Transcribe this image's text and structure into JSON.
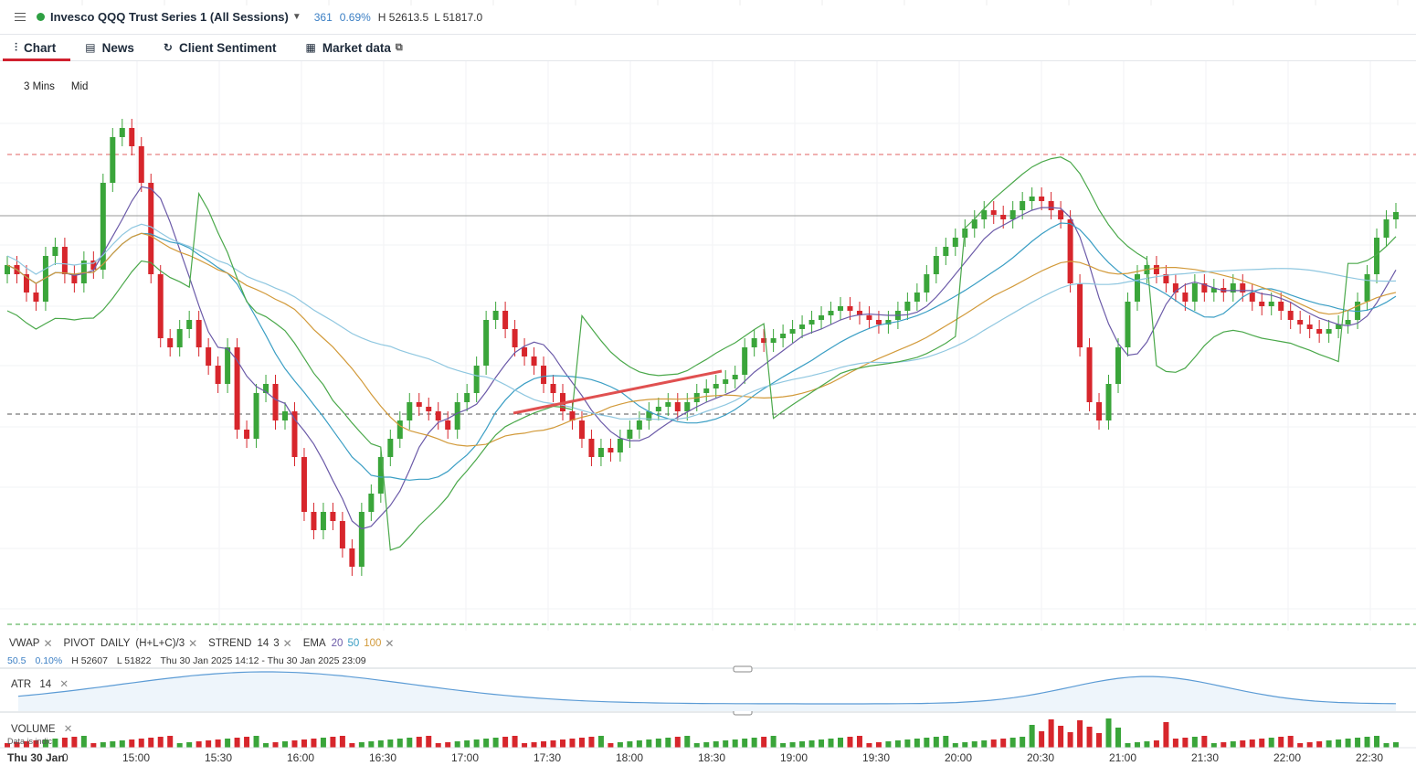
{
  "header": {
    "title": "Invesco QQQ Trust Series 1 (All Sessions)",
    "change": "361",
    "change_pct": "0.69%",
    "high": "H 52613.5",
    "low": "L 51817.0",
    "status_color": "#2ea043"
  },
  "tabs": [
    {
      "label": "Chart",
      "icon": "chart-icon"
    },
    {
      "label": "News",
      "icon": "news-icon"
    },
    {
      "label": "Client Sentiment",
      "icon": "sentiment-icon"
    },
    {
      "label": "Market data",
      "icon": "market-data-icon"
    }
  ],
  "toolbar": {
    "interval": "3 Mins",
    "price_type": "Mid"
  },
  "indicators": {
    "vwap": "VWAP",
    "pivot": "PIVOT",
    "pivot_period": "DAILY",
    "pivot_formula": "(H+L+C)/3",
    "strend": "STREND",
    "strend_p1": "14",
    "strend_p2": "3",
    "ema": "EMA",
    "ema_20": "20",
    "ema_50": "50",
    "ema_100": "100"
  },
  "info": {
    "value": "50.5",
    "pct": "0.10%",
    "high": "H 52607",
    "low": "L 51822",
    "range": "Thu 30 Jan 2025 14:12 - Thu 30 Jan 2025 23:09"
  },
  "atr": {
    "label": "ATR",
    "period": "14"
  },
  "volume": {
    "label": "VOLUME",
    "note": "Data is indic"
  },
  "time_axis": {
    "date_label": "Thu 30 Jan",
    "zero": "0",
    "ticks": [
      "15:00",
      "15:30",
      "16:00",
      "16:30",
      "17:00",
      "17:30",
      "18:00",
      "18:30",
      "19:00",
      "19:30",
      "20:00",
      "20:30",
      "21:00",
      "21:30",
      "22:00",
      "22:30"
    ]
  },
  "colors": {
    "up": "#3aa53a",
    "down": "#d7262c",
    "vwap": "#8fc7e0",
    "ema20": "#6b5aa8",
    "ema50": "#3a9ec4",
    "ema100": "#d29a3a",
    "strend_up": "#4aa84a",
    "strend_down": "#d84040",
    "trendline": "#e05050"
  }
}
